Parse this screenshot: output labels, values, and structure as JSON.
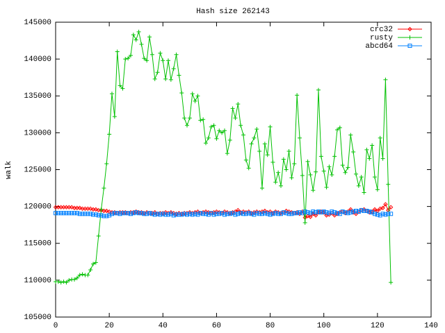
{
  "chart_data": {
    "type": "line",
    "title": "Hash size 262143",
    "y_label": "walk",
    "x": [
      0,
      1,
      2,
      3,
      4,
      5,
      6,
      7,
      8,
      9,
      10,
      11,
      12,
      13,
      14,
      15,
      16,
      17,
      18,
      19,
      20,
      21,
      22,
      23,
      24,
      25,
      26,
      27,
      28,
      29,
      30,
      31,
      32,
      33,
      34,
      35,
      36,
      37,
      38,
      39,
      40,
      41,
      42,
      43,
      44,
      45,
      46,
      47,
      48,
      49,
      50,
      51,
      52,
      53,
      54,
      55,
      56,
      57,
      58,
      59,
      60,
      61,
      62,
      63,
      64,
      65,
      66,
      67,
      68,
      69,
      70,
      71,
      72,
      73,
      74,
      75,
      76,
      77,
      78,
      79,
      80,
      81,
      82,
      83,
      84,
      85,
      86,
      87,
      88,
      89,
      90,
      91,
      92,
      93,
      94,
      95,
      96,
      97,
      98,
      99,
      100,
      101,
      102,
      103,
      104,
      105,
      106,
      107,
      108,
      109,
      110,
      111,
      112,
      113,
      114,
      115,
      116,
      117,
      118,
      119,
      120,
      121,
      122,
      123,
      124,
      125
    ],
    "series": [
      {
        "name": "crc32",
        "color": "#ff0000",
        "marker": "diamond",
        "values": [
          119900,
          119900,
          119900,
          119900,
          119900,
          119900,
          119900,
          119800,
          119800,
          119800,
          119700,
          119700,
          119700,
          119700,
          119600,
          119600,
          119500,
          119500,
          119400,
          119400,
          119300,
          119200,
          119200,
          119100,
          119200,
          119200,
          119200,
          119100,
          119200,
          119200,
          119300,
          119200,
          119200,
          119100,
          119200,
          119100,
          119100,
          119200,
          119000,
          119100,
          119100,
          119200,
          119100,
          119200,
          119100,
          119000,
          119100,
          119000,
          119100,
          119100,
          119200,
          119100,
          119200,
          119300,
          119100,
          119200,
          119300,
          119200,
          119100,
          119200,
          119300,
          119200,
          119100,
          119300,
          119200,
          119100,
          119200,
          119300,
          119500,
          119200,
          119300,
          119200,
          119300,
          119100,
          119200,
          119300,
          119200,
          119300,
          119400,
          119200,
          119300,
          119100,
          119300,
          119200,
          119100,
          119200,
          119400,
          119300,
          119200,
          119100,
          119200,
          119000,
          119300,
          118500,
          118700,
          118600,
          119000,
          118800,
          119200,
          119300,
          119200,
          118800,
          118900,
          119100,
          118800,
          119000,
          119200,
          119300,
          119100,
          119300,
          119600,
          119200,
          119000,
          119300,
          119500,
          119600,
          119400,
          119200,
          119300,
          119600,
          119400,
          119700,
          119800,
          120300,
          119500,
          119900
        ]
      },
      {
        "name": "rusty",
        "color": "#00c000",
        "marker": "plus",
        "values": [
          109800,
          109800,
          109700,
          109800,
          109700,
          110000,
          110100,
          110100,
          110300,
          110700,
          110800,
          110700,
          110700,
          111400,
          112200,
          112400,
          116000,
          119600,
          122500,
          125800,
          129800,
          135300,
          132200,
          141000,
          136400,
          136000,
          140000,
          140100,
          140500,
          143300,
          142600,
          143700,
          142000,
          140100,
          139800,
          143000,
          140600,
          137300,
          138200,
          140800,
          139800,
          137300,
          139800,
          137200,
          138700,
          140600,
          137800,
          135400,
          132000,
          131000,
          132000,
          135300,
          134300,
          135000,
          131700,
          131800,
          128600,
          129300,
          130800,
          131000,
          129200,
          130300,
          130000,
          130300,
          127200,
          129000,
          133300,
          132000,
          133900,
          131000,
          129700,
          126300,
          125200,
          128500,
          129300,
          130500,
          127500,
          122500,
          128500,
          127000,
          130800,
          126000,
          123300,
          124600,
          122800,
          126400,
          125000,
          127500,
          123900,
          125800,
          135100,
          129300,
          124200,
          117800,
          126100,
          124300,
          122200,
          124700,
          135800,
          126800,
          124800,
          122600,
          125400,
          124300,
          126800,
          130400,
          130700,
          125600,
          124600,
          125300,
          129700,
          127400,
          124400,
          122800,
          124000,
          121900,
          127700,
          126500,
          128300,
          124000,
          122300,
          129300,
          126500,
          137200,
          123000,
          109700
        ]
      },
      {
        "name": "abcd64",
        "color": "#0080ff",
        "marker": "square",
        "values": [
          119100,
          119100,
          119100,
          119100,
          119100,
          119100,
          119100,
          119100,
          119100,
          119000,
          119000,
          119000,
          119000,
          119000,
          118900,
          118900,
          118800,
          118800,
          118700,
          118700,
          118800,
          119000,
          119100,
          119100,
          119000,
          119100,
          119100,
          119100,
          119000,
          119100,
          119200,
          119100,
          119100,
          119000,
          119000,
          119100,
          119000,
          118900,
          119000,
          118900,
          119000,
          118900,
          118900,
          119000,
          118800,
          118900,
          118900,
          118900,
          119000,
          118900,
          119000,
          118900,
          119000,
          118900,
          119100,
          119000,
          119000,
          118900,
          119100,
          118900,
          119000,
          119000,
          119100,
          118900,
          119000,
          119000,
          119100,
          118900,
          119000,
          119100,
          119000,
          119000,
          119100,
          119000,
          118900,
          119100,
          119000,
          119000,
          119100,
          119000,
          118900,
          119000,
          119100,
          119000,
          119000,
          119200,
          119100,
          119000,
          119000,
          119100,
          119100,
          119200,
          119100,
          119300,
          119200,
          119100,
          119300,
          119200,
          119300,
          119200,
          119300,
          119200,
          119100,
          119300,
          119200,
          119100,
          119000,
          119300,
          119200,
          119100,
          119200,
          119300,
          119400,
          119300,
          119500,
          119400,
          119400,
          119300,
          119200,
          119000,
          118900,
          118800,
          119000,
          118900,
          119000,
          119000
        ]
      }
    ],
    "xlim": [
      0,
      140
    ],
    "xticks": [
      0,
      20,
      40,
      60,
      80,
      100,
      120,
      140
    ],
    "ylim": [
      105000,
      145000
    ],
    "yticks": [
      105000,
      110000,
      115000,
      120000,
      125000,
      130000,
      135000,
      140000,
      145000
    ],
    "legend": "top-right"
  }
}
